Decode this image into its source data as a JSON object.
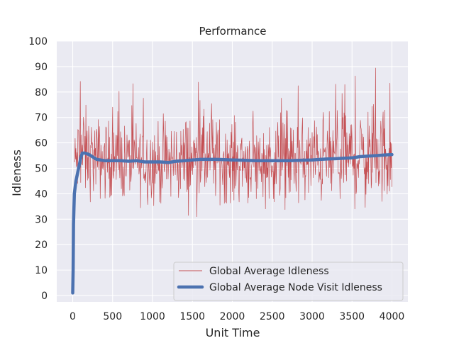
{
  "chart_data": {
    "type": "line",
    "title": "Performance",
    "xlabel": "Unit Time",
    "ylabel": "Idleness",
    "xlim": [
      -200,
      4200
    ],
    "ylim": [
      -2.5,
      100
    ],
    "xticks": [
      0,
      500,
      1000,
      1500,
      2000,
      2500,
      3000,
      3500,
      4000
    ],
    "yticks": [
      0,
      10,
      20,
      30,
      40,
      50,
      60,
      70,
      80,
      90,
      100
    ],
    "grid": true,
    "legend_position": "bottom-right",
    "colors": {
      "background": "#eaeaf2",
      "grid": "#ffffff",
      "global_average_idleness": "#c44e52",
      "node_visit_idleness": "#4c72b0"
    },
    "series": [
      {
        "name": "Global Average Idleness",
        "style": "thin-noisy",
        "x_start": 20,
        "x_end": 4000,
        "step": 5,
        "envelope_x": [
          20,
          100,
          200,
          300,
          500,
          700,
          900,
          1100,
          1300,
          1500,
          1700,
          2000,
          2300,
          2600,
          2900,
          3200,
          3500,
          3700,
          3900,
          4000
        ],
        "envelope_mean": [
          52,
          56,
          55,
          54,
          53,
          53,
          52.5,
          52,
          53,
          53.5,
          54,
          53,
          52.5,
          52.5,
          53,
          54,
          54.5,
          55,
          55.5,
          56
        ],
        "envelope_spread": [
          6,
          11,
          9,
          8.5,
          8,
          8,
          8.5,
          8.5,
          9,
          9.5,
          9,
          8.5,
          8.5,
          8.5,
          9,
          9.5,
          10,
          10.5,
          10.5,
          11
        ],
        "min": 31,
        "max": 94
      },
      {
        "name": "Global Average Node Visit Idleness",
        "style": "thick",
        "x": [
          0,
          5,
          10,
          20,
          40,
          60,
          80,
          100,
          120,
          150,
          200,
          250,
          300,
          400,
          500,
          600,
          700,
          800,
          900,
          1000,
          1100,
          1200,
          1300,
          1400,
          1500,
          1600,
          1700,
          1800,
          1900,
          2000,
          2100,
          2200,
          2300,
          2400,
          2500,
          2600,
          2700,
          2800,
          2900,
          3000,
          3100,
          3200,
          3300,
          3400,
          3500,
          3600,
          3700,
          3800,
          3900,
          4000
        ],
        "values": [
          1,
          10,
          28,
          40,
          45,
          48,
          51,
          54,
          56,
          56,
          55.5,
          54.5,
          53.5,
          53,
          53,
          53,
          52.8,
          53,
          52.5,
          52.5,
          52.5,
          52.3,
          52.8,
          53,
          53.3,
          53.5,
          53.5,
          53.5,
          53.4,
          53.3,
          53.2,
          53.1,
          53,
          53,
          53,
          53,
          53,
          53.1,
          53.2,
          53.3,
          53.5,
          53.7,
          53.8,
          54,
          54.1,
          54.6,
          54.8,
          55,
          55.2,
          55.4
        ]
      }
    ]
  }
}
